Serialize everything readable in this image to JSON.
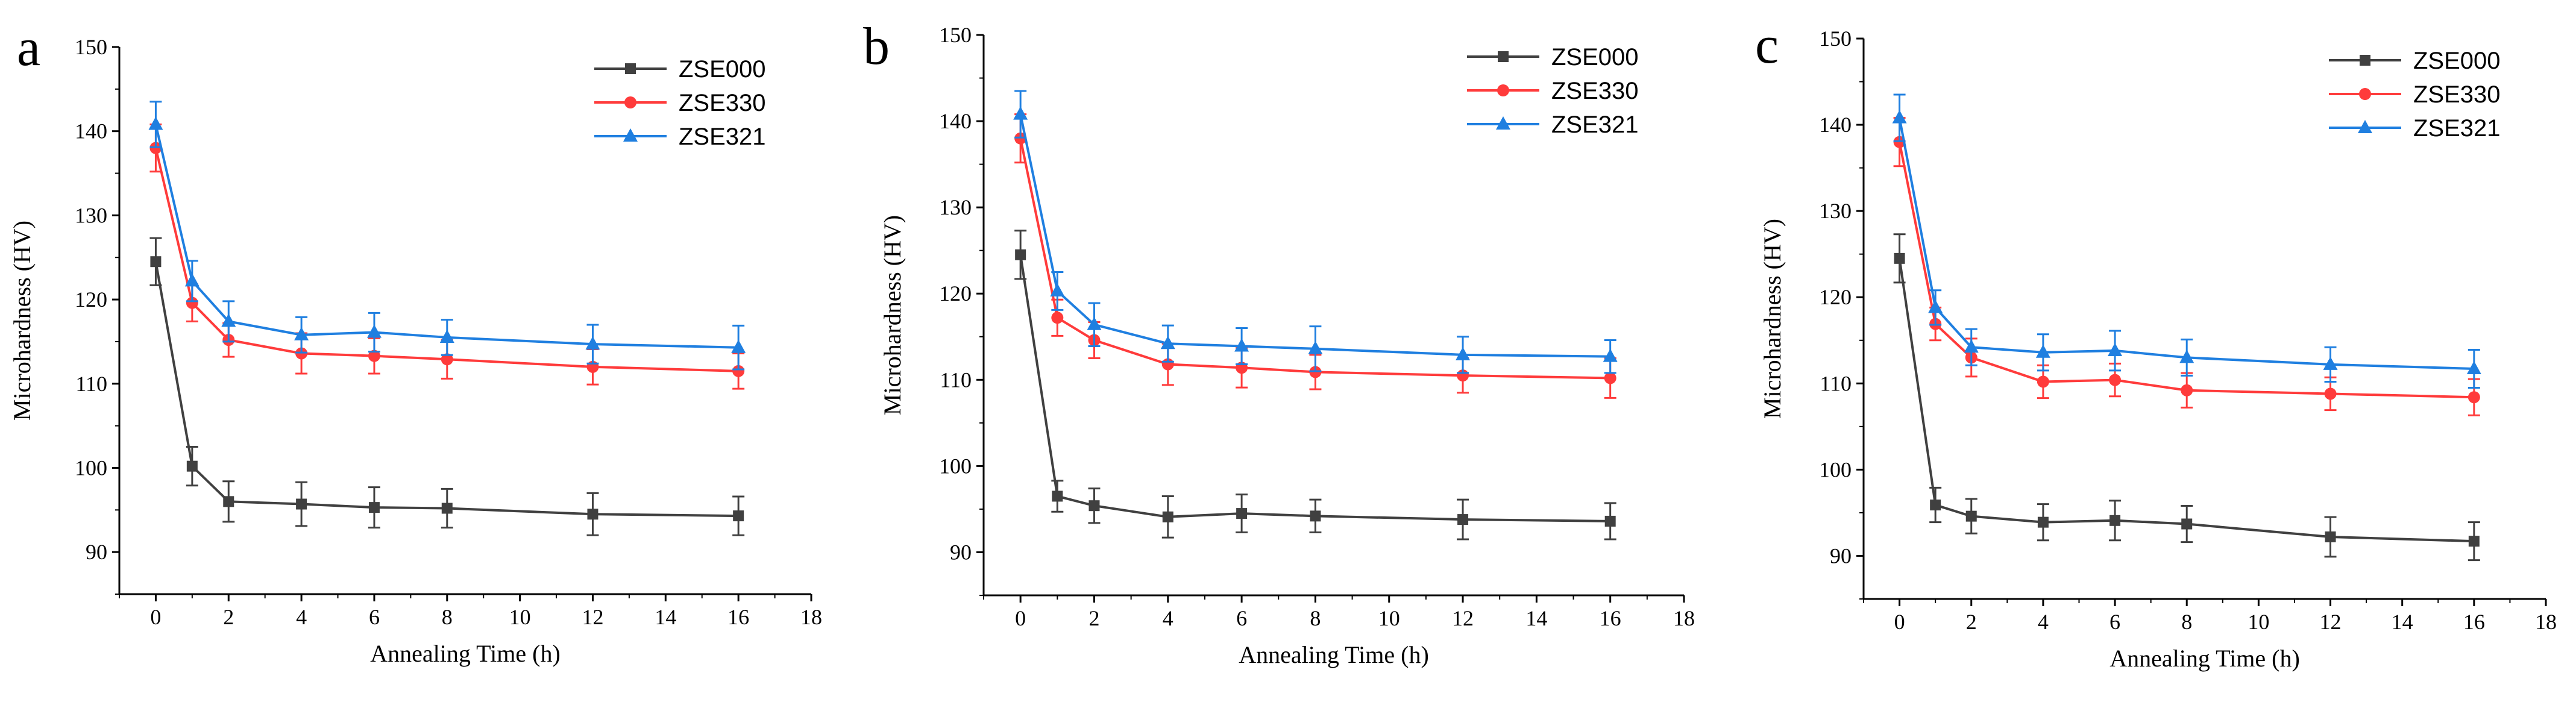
{
  "chart_data": [
    {
      "type": "line",
      "panel_label": "a",
      "xlabel": "Annealing Time (h)",
      "ylabel": "Microhardness (HV)",
      "xlim": [
        -1,
        18
      ],
      "ylim": [
        85,
        150
      ],
      "xticks": [
        0,
        2,
        4,
        6,
        8,
        10,
        12,
        14,
        16,
        18
      ],
      "yticks": [
        90,
        100,
        110,
        120,
        130,
        140,
        150
      ],
      "x": [
        0,
        1,
        2,
        4,
        6,
        8,
        12,
        16
      ],
      "legend_position": "top-right",
      "series": [
        {
          "name": "ZSE000",
          "color": "#404040",
          "marker": "square",
          "values": [
            124.5,
            100.2,
            96.0,
            95.7,
            95.3,
            95.2,
            94.5,
            94.3
          ],
          "errors": [
            2.8,
            2.3,
            2.4,
            2.6,
            2.4,
            2.3,
            2.5,
            2.3
          ]
        },
        {
          "name": "ZSE330",
          "color": "#ff3b3b",
          "marker": "circle",
          "values": [
            138.0,
            119.6,
            115.2,
            113.6,
            113.3,
            112.9,
            112.0,
            111.5
          ],
          "errors": [
            2.8,
            2.2,
            2.0,
            2.4,
            2.1,
            2.3,
            2.1,
            2.1
          ]
        },
        {
          "name": "ZSE321",
          "color": "#1f7fe0",
          "marker": "triangle",
          "values": [
            140.8,
            122.2,
            117.4,
            115.8,
            116.1,
            115.5,
            114.7,
            114.3
          ],
          "errors": [
            2.7,
            2.4,
            2.4,
            2.1,
            2.3,
            2.1,
            2.3,
            2.6
          ]
        }
      ]
    },
    {
      "type": "line",
      "panel_label": "b",
      "xlabel": "Annealing Time (h)",
      "ylabel": "Microhardness (HV)",
      "xlim": [
        -1,
        18
      ],
      "ylim": [
        85,
        150
      ],
      "xticks": [
        0,
        2,
        4,
        6,
        8,
        10,
        12,
        14,
        16,
        18
      ],
      "yticks": [
        90,
        100,
        110,
        120,
        130,
        140,
        150
      ],
      "x": [
        0,
        1,
        2,
        4,
        6,
        8,
        12,
        16
      ],
      "legend_position": "top-right",
      "series": [
        {
          "name": "ZSE000",
          "color": "#404040",
          "marker": "square",
          "values": [
            124.5,
            96.5,
            95.4,
            94.1,
            94.5,
            94.2,
            93.8,
            93.6
          ],
          "errors": [
            2.8,
            1.8,
            2.0,
            2.4,
            2.2,
            1.9,
            2.3,
            2.1
          ]
        },
        {
          "name": "ZSE330",
          "color": "#ff3b3b",
          "marker": "circle",
          "values": [
            138.0,
            117.2,
            114.6,
            111.8,
            111.4,
            110.9,
            110.5,
            110.2
          ],
          "errors": [
            2.8,
            2.1,
            2.1,
            2.4,
            2.3,
            2.0,
            2.0,
            2.3
          ]
        },
        {
          "name": "ZSE321",
          "color": "#1f7fe0",
          "marker": "triangle",
          "values": [
            140.8,
            120.3,
            116.4,
            114.2,
            113.9,
            113.6,
            112.9,
            112.7
          ],
          "errors": [
            2.7,
            2.2,
            2.5,
            2.1,
            2.1,
            2.6,
            2.1,
            1.9
          ]
        }
      ]
    },
    {
      "type": "line",
      "panel_label": "c",
      "xlabel": "Annealing Time (h)",
      "ylabel": "Microhardness (HV)",
      "xlim": [
        -1,
        18
      ],
      "ylim": [
        85,
        150
      ],
      "xticks": [
        0,
        2,
        4,
        6,
        8,
        10,
        12,
        14,
        16,
        18
      ],
      "yticks": [
        90,
        100,
        110,
        120,
        130,
        140,
        150
      ],
      "x": [
        0,
        1,
        2,
        4,
        6,
        8,
        12,
        16
      ],
      "legend_position": "top-right",
      "series": [
        {
          "name": "ZSE000",
          "color": "#404040",
          "marker": "square",
          "values": [
            124.5,
            95.9,
            94.6,
            93.9,
            94.1,
            93.7,
            92.2,
            91.7
          ],
          "errors": [
            2.8,
            2.0,
            2.0,
            2.1,
            2.3,
            2.1,
            2.3,
            2.2
          ]
        },
        {
          "name": "ZSE330",
          "color": "#ff3b3b",
          "marker": "circle",
          "values": [
            138.0,
            116.9,
            113.0,
            110.2,
            110.4,
            109.2,
            108.8,
            108.4
          ],
          "errors": [
            2.8,
            1.9,
            2.2,
            1.9,
            1.9,
            2.0,
            1.9,
            2.1
          ]
        },
        {
          "name": "ZSE321",
          "color": "#1f7fe0",
          "marker": "triangle",
          "values": [
            140.8,
            118.8,
            114.2,
            113.6,
            113.8,
            113.0,
            112.2,
            111.7
          ],
          "errors": [
            2.7,
            2.0,
            2.1,
            2.1,
            2.3,
            2.1,
            2.0,
            2.2
          ]
        }
      ]
    }
  ]
}
